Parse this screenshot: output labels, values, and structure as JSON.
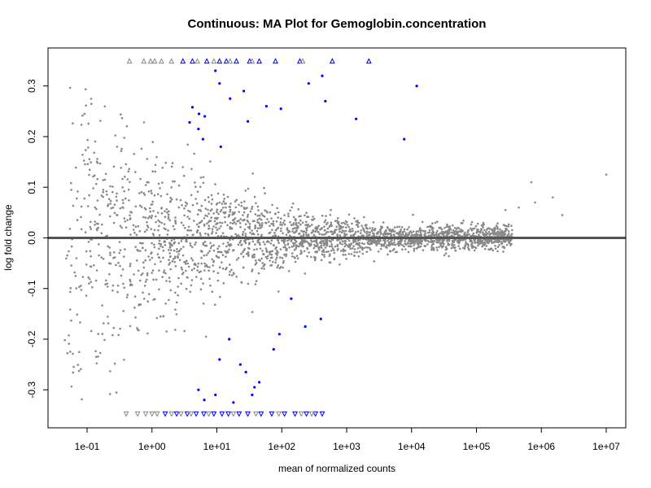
{
  "chart_data": {
    "type": "scatter",
    "title": "Continuous: MA Plot for Gemoglobin.concentration",
    "xlabel": "mean of normalized counts",
    "ylabel": "log fold change",
    "x_scale": "log10",
    "xlim": [
      0.025,
      20000000
    ],
    "ylim": [
      -0.375,
      0.375
    ],
    "xticks": [
      0.1,
      1,
      10,
      100,
      1000,
      10000,
      100000,
      1000000,
      10000000
    ],
    "xtick_labels": [
      "1e-01",
      "1e+00",
      "1e+01",
      "1e+02",
      "1e+03",
      "1e+04",
      "1e+05",
      "1e+06",
      "1e+07"
    ],
    "yticks": [
      -0.3,
      -0.2,
      -0.1,
      0.0,
      0.1,
      0.2,
      0.3
    ],
    "ytick_labels": [
      "-0.3",
      "-0.2",
      "-0.1",
      "0.0",
      "0.1",
      "0.2",
      "0.3"
    ],
    "reference_line_y": 0.0,
    "colors": {
      "nonsignificant": "#888888",
      "significant": "#0000ff",
      "reference_line": "#555555"
    },
    "series": [
      {
        "status": "significant",
        "points": [
          [
            5.2,
            0.215
          ],
          [
            9.5,
            0.33
          ],
          [
            11.0,
            0.305
          ],
          [
            16.0,
            0.275
          ],
          [
            26.0,
            0.29
          ],
          [
            4.2,
            0.258
          ],
          [
            5.3,
            0.245
          ],
          [
            6.5,
            0.24
          ],
          [
            3.8,
            0.228
          ],
          [
            6.1,
            0.195
          ],
          [
            11.5,
            0.18
          ],
          [
            30.0,
            0.23
          ],
          [
            58.0,
            0.26
          ],
          [
            97.0,
            0.255
          ],
          [
            260.0,
            0.305
          ],
          [
            420.0,
            0.32
          ],
          [
            470.0,
            0.27
          ],
          [
            1400.0,
            0.235
          ],
          [
            12000.0,
            0.3
          ],
          [
            7700.0,
            0.195
          ],
          [
            5.2,
            -0.3
          ],
          [
            6.4,
            -0.32
          ],
          [
            9.5,
            -0.31
          ],
          [
            18.0,
            -0.325
          ],
          [
            23.0,
            -0.25
          ],
          [
            28.0,
            -0.265
          ],
          [
            38.0,
            -0.295
          ],
          [
            45.0,
            -0.285
          ],
          [
            11.0,
            -0.24
          ],
          [
            15.5,
            -0.2
          ],
          [
            92.0,
            -0.19
          ],
          [
            230.0,
            -0.175
          ],
          [
            400.0,
            -0.16
          ],
          [
            140.0,
            -0.12
          ],
          [
            75.0,
            -0.22
          ],
          [
            35.0,
            -0.31
          ]
        ]
      },
      {
        "status": "out_of_range_high_significant",
        "x": [
          3.0,
          4.2,
          7.0,
          11.0,
          14.0,
          20.0,
          32.0,
          45.0,
          80.0,
          190.0,
          600.0,
          2200.0
        ]
      },
      {
        "status": "out_of_range_high_nonsignificant",
        "x": [
          0.45,
          0.75,
          0.95,
          1.1,
          1.4,
          2.0,
          5.0,
          9.0,
          16.0,
          35.0,
          210.0
        ]
      },
      {
        "status": "out_of_range_low_significant",
        "x": [
          1.6,
          2.4,
          3.5,
          4.8,
          6.3,
          9.0,
          12.0,
          15.0,
          22.0,
          30.0,
          48.0,
          70.0,
          110.0,
          160.0,
          240.0,
          330.0,
          420.0
        ]
      },
      {
        "status": "out_of_range_low_nonsignificant",
        "x": [
          0.4,
          0.6,
          0.8,
          1.0,
          1.2,
          2.0,
          2.8,
          4.0,
          7.5,
          18.0,
          40.0,
          90.0,
          200.0,
          290.0
        ]
      }
    ],
    "nonsignificant_point_count": 2500,
    "nonsignificant_point_count_note": "approximate"
  }
}
